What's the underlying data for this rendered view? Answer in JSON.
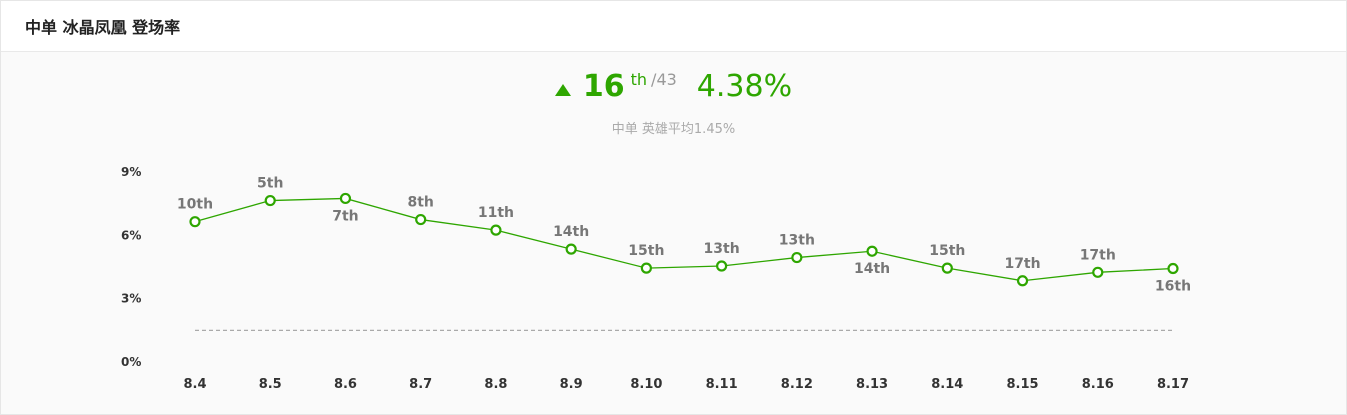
{
  "header": {
    "title": "中单 冰晶凤凰 登场率"
  },
  "summary": {
    "trend_icon": "triangle-up-icon",
    "rank": "16",
    "rank_suffix": "th",
    "rank_total": "/43",
    "rate": "4.38%",
    "average_text": "中单 英雄平均1.45%"
  },
  "colors": {
    "accent": "#2ea600",
    "average_line": "#aaaaaa",
    "muted_text": "#aaaaaa"
  },
  "chart_data": {
    "type": "line",
    "title": "",
    "xlabel": "",
    "ylabel": "",
    "categories": [
      "8.4",
      "8.5",
      "8.6",
      "8.7",
      "8.8",
      "8.9",
      "8.10",
      "8.11",
      "8.12",
      "8.13",
      "8.14",
      "8.15",
      "8.16",
      "8.17"
    ],
    "series": [
      {
        "values": [
          6.6,
          7.6,
          7.7,
          6.7,
          6.2,
          5.3,
          4.4,
          4.5,
          4.9,
          5.2,
          4.4,
          3.8,
          4.2,
          4.38
        ],
        "labels": [
          "10th",
          "5th",
          "7th",
          "8th",
          "11th",
          "14th",
          "15th",
          "13th",
          "13th",
          "14th",
          "15th",
          "17th",
          "17th",
          "16th"
        ]
      }
    ],
    "average": 1.45,
    "ylim": [
      0,
      9
    ],
    "yticks": [
      {
        "value": 0,
        "label": "0%"
      },
      {
        "value": 3,
        "label": "3%"
      },
      {
        "value": 6,
        "label": "6%"
      },
      {
        "value": 9,
        "label": "9%"
      }
    ],
    "grid": false,
    "legend": "none"
  }
}
